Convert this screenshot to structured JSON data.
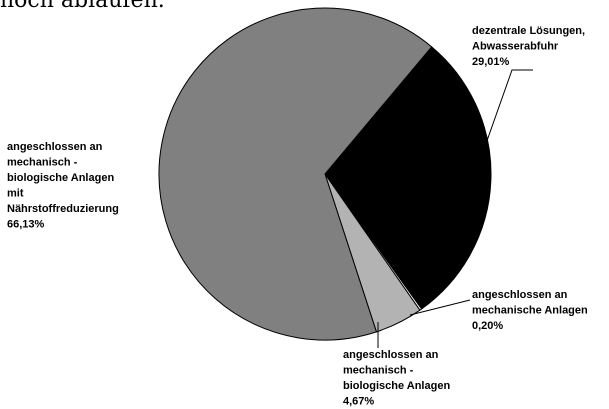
{
  "header": {
    "clipped_text": "noch ablaufen."
  },
  "chart_data": {
    "type": "pie",
    "title": "",
    "slices": [
      {
        "label": "dezentrale Lösungen, Abwasserabfuhr",
        "label_lines": [
          "dezentrale Lösungen,",
          "Abwasserabfuhr",
          "29,01%"
        ],
        "value": 29.01,
        "color": "#000000"
      },
      {
        "label": "angeschlossen an mechanische Anlagen",
        "label_lines": [
          "angeschlossen an",
          "mechanische Anlagen",
          "0,20%"
        ],
        "value": 0.2,
        "color": "#ffffff"
      },
      {
        "label": "angeschlossen an mechanisch - biologische Anlagen",
        "label_lines": [
          "angeschlossen an",
          "mechanisch -",
          "biologische Anlagen",
          "4,67%"
        ],
        "value": 4.67,
        "color": "#b3b3b3"
      },
      {
        "label": "angeschlossen an mechanisch - biologische Anlagen mit Nährstoffreduzierung",
        "label_lines": [
          "angeschlossen an",
          "mechanisch -",
          "biologische Anlagen",
          "mit",
          "Nährstoffreduzierung",
          "66,13%"
        ],
        "value": 66.13,
        "color": "#808080"
      }
    ]
  }
}
